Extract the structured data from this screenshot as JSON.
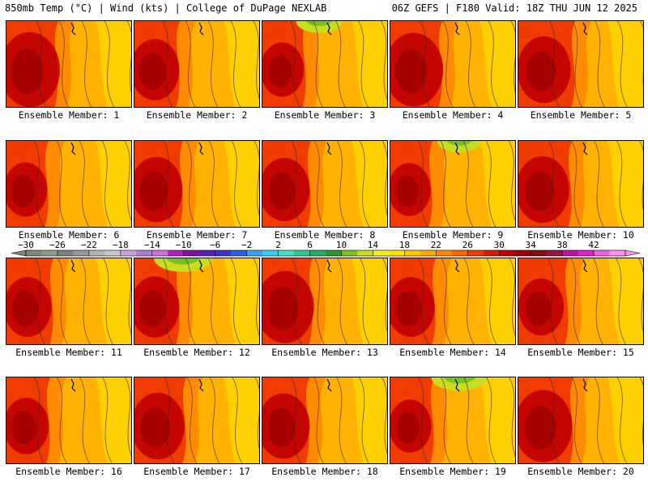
{
  "header": {
    "left": "850mb Temp (°C) | Wind (kts) | College of DuPage NEXLAB",
    "right": "06Z GEFS | F180 Valid: 18Z THU JUN 12 2025"
  },
  "members": [
    {
      "label": "Ensemble Member: 1",
      "hot": 0.62,
      "cool": 0.0,
      "shift": 0.6
    },
    {
      "label": "Ensemble Member: 2",
      "hot": 0.42,
      "cool": 0.0,
      "shift": 0.4
    },
    {
      "label": "Ensemble Member: 3",
      "hot": 0.32,
      "cool": 0.35,
      "shift": 0.35
    },
    {
      "label": "Ensemble Member: 4",
      "hot": 0.6,
      "cool": 0.0,
      "shift": 0.6
    },
    {
      "label": "Ensemble Member: 5",
      "hot": 0.5,
      "cool": 0.0,
      "shift": 0.75
    },
    {
      "label": "Ensemble Member: 6",
      "hot": 0.32,
      "cool": 0.0,
      "shift": 0.3
    },
    {
      "label": "Ensemble Member: 7",
      "hot": 0.48,
      "cool": 0.0,
      "shift": 0.5
    },
    {
      "label": "Ensemble Member: 8",
      "hot": 0.45,
      "cool": 0.0,
      "shift": 0.5
    },
    {
      "label": "Ensemble Member: 9",
      "hot": 0.3,
      "cool": 0.3,
      "shift": 0.3
    },
    {
      "label": "Ensemble Member: 10",
      "hot": 0.5,
      "cool": 0.0,
      "shift": 0.65
    },
    {
      "label": "Ensemble Member: 11",
      "hot": 0.4,
      "cool": 0.0,
      "shift": 0.45
    },
    {
      "label": "Ensemble Member: 12",
      "hot": 0.42,
      "cool": 0.6,
      "shift": 0.4
    },
    {
      "label": "Ensemble Member: 13",
      "hot": 0.58,
      "cool": 0.0,
      "shift": 0.55
    },
    {
      "label": "Ensemble Member: 14",
      "hot": 0.4,
      "cool": 0.0,
      "shift": 0.4
    },
    {
      "label": "Ensemble Member: 15",
      "hot": 0.36,
      "cool": 0.0,
      "shift": 0.55
    },
    {
      "label": "Ensemble Member: 16",
      "hot": 0.35,
      "cool": 0.0,
      "shift": 0.35
    },
    {
      "label": "Ensemble Member: 17",
      "hot": 0.5,
      "cool": 0.0,
      "shift": 0.6
    },
    {
      "label": "Ensemble Member: 18",
      "hot": 0.48,
      "cool": 0.0,
      "shift": 0.45
    },
    {
      "label": "Ensemble Member: 19",
      "hot": 0.3,
      "cool": 0.55,
      "shift": 0.35
    },
    {
      "label": "Ensemble Member: 20",
      "hot": 0.58,
      "cool": 0.0,
      "shift": 0.7
    }
  ],
  "colorbar": {
    "unit": "°C",
    "ticks": [
      "−30",
      "−26",
      "−22",
      "−18",
      "−14",
      "−10",
      "−6",
      "−2",
      "2",
      "6",
      "10",
      "14",
      "18",
      "22",
      "26",
      "30",
      "34",
      "38",
      "42"
    ],
    "colors": [
      "#7a8a7a",
      "#8e9c8e",
      "#7f7f7f",
      "#999999",
      "#b3b3b3",
      "#c8c8c8",
      "#c7a2d8",
      "#b07ad0",
      "#d070e0",
      "#b020c0",
      "#8010a0",
      "#5a1fb0",
      "#3b33c8",
      "#2a62e0",
      "#3aa0f0",
      "#36d0f0",
      "#40e0c8",
      "#30c890",
      "#20b060",
      "#2a9a2a",
      "#7ac020",
      "#c8dc20",
      "#f0f018",
      "#ffe400",
      "#ffc800",
      "#ffaa00",
      "#ff8c00",
      "#ff6400",
      "#f03c00",
      "#d81c00",
      "#c00000",
      "#a00000",
      "#801010",
      "#9a1040",
      "#c010a0",
      "#e020c8",
      "#f060e0",
      "#ff90f0"
    ]
  }
}
